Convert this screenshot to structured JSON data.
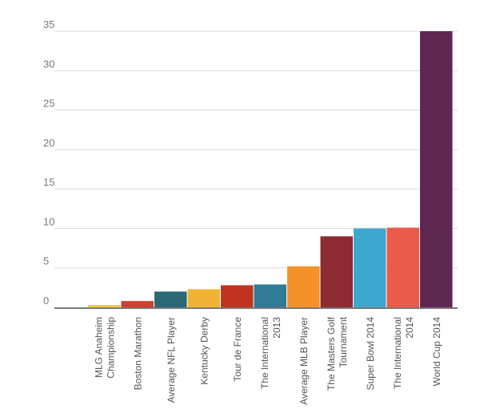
{
  "chart_data": {
    "type": "bar",
    "title": "",
    "xlabel": "",
    "ylabel": "",
    "ylim": [
      0,
      35
    ],
    "yticks": [
      0,
      5,
      10,
      15,
      20,
      25,
      30,
      35
    ],
    "grid": true,
    "legend": "none",
    "categories": [
      [
        "MLG Anaheim",
        "Championship"
      ],
      [
        "Boston Marathon"
      ],
      [
        "Average NFL Player"
      ],
      [
        "Kentucky Derby"
      ],
      [
        "Tour de France"
      ],
      [
        "The International",
        "2013"
      ],
      [
        "Average MLB Player"
      ],
      [
        "The Masters Golf",
        "Tournament"
      ],
      [
        "Super Bowl 2014"
      ],
      [
        "The International",
        "2014"
      ],
      [
        "World Cup 2014"
      ]
    ],
    "values": [
      0.3,
      0.8,
      2.0,
      2.3,
      2.8,
      2.9,
      5.2,
      9.0,
      10.0,
      10.1,
      35.0
    ],
    "colors": [
      "#f2c84b",
      "#d23f2c",
      "#2a6875",
      "#f2b233",
      "#c2341f",
      "#2f7b96",
      "#f59127",
      "#8d2b33",
      "#3fa8d0",
      "#eb5a4b",
      "#5e2650"
    ]
  }
}
